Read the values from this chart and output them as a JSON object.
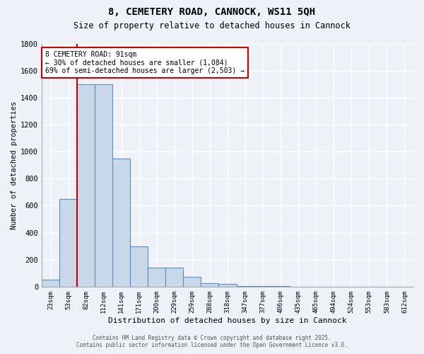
{
  "title_line1": "8, CEMETERY ROAD, CANNOCK, WS11 5QH",
  "title_line2": "Size of property relative to detached houses in Cannock",
  "xlabel": "Distribution of detached houses by size in Cannock",
  "ylabel": "Number of detached properties",
  "bar_labels": [
    "23sqm",
    "53sqm",
    "82sqm",
    "112sqm",
    "141sqm",
    "171sqm",
    "200sqm",
    "229sqm",
    "259sqm",
    "288sqm",
    "318sqm",
    "347sqm",
    "377sqm",
    "406sqm",
    "435sqm",
    "465sqm",
    "494sqm",
    "524sqm",
    "553sqm",
    "583sqm",
    "612sqm"
  ],
  "bar_values": [
    50,
    650,
    1500,
    1500,
    950,
    300,
    140,
    140,
    70,
    25,
    18,
    5,
    3,
    2,
    1,
    1,
    0,
    0,
    0,
    0,
    0
  ],
  "bar_color": "#c8d8e8",
  "bar_edgecolor": "#5590c8",
  "vline_x": 1.5,
  "vline_color": "#cc0000",
  "annotation_text": "8 CEMETERY ROAD: 91sqm\n← 30% of detached houses are smaller (1,084)\n69% of semi-detached houses are larger (2,503) →",
  "annotation_box_facecolor": "white",
  "annotation_box_edgecolor": "#cc0000",
  "ylim": [
    0,
    1800
  ],
  "yticks": [
    0,
    200,
    400,
    600,
    800,
    1000,
    1200,
    1400,
    1600,
    1800
  ],
  "background_color": "#eef2f8",
  "grid_color": "#d0d8e8",
  "footer_line1": "Contains HM Land Registry data © Crown copyright and database right 2025.",
  "footer_line2": "Contains public sector information licensed under the Open Government Licence v3.0."
}
